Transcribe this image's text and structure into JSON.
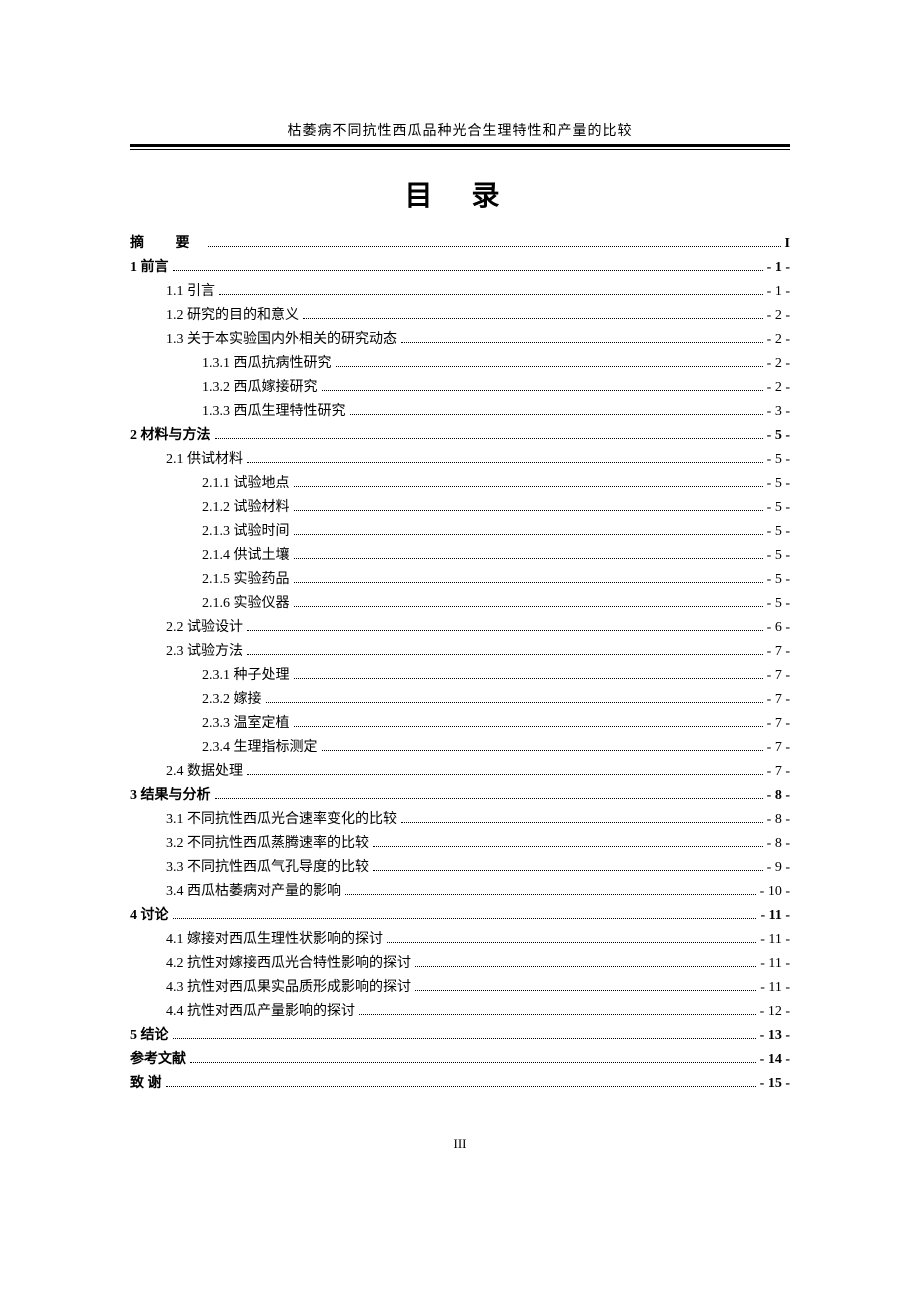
{
  "header": {
    "title": "枯萎病不同抗性西瓜品种光合生理特性和产量的比较"
  },
  "main_title": "目 录",
  "footer_page": "III",
  "toc": {
    "entries": [
      {
        "label": "摘    要",
        "page": "I",
        "level": 0,
        "special": "zhiyao"
      },
      {
        "label": "1 前言",
        "page": "- 1 -",
        "level": 0
      },
      {
        "label": "1.1  引言 ",
        "page": "- 1 -",
        "level": 1
      },
      {
        "label": "1.2  研究的目的和意义 ",
        "page": "- 2 -",
        "level": 1
      },
      {
        "label": "1.3  关于本实验国内外相关的研究动态 ",
        "page": "- 2 -",
        "level": 1
      },
      {
        "label": "1.3.1  西瓜抗病性研究",
        "page": "- 2 -",
        "level": 2
      },
      {
        "label": "1.3.2  西瓜嫁接研究",
        "page": "- 2 -",
        "level": 2
      },
      {
        "label": "1.3.3  西瓜生理特性研究 ",
        "page": "- 3 -",
        "level": 2
      },
      {
        "label": "2  材料与方法 ",
        "page": "- 5 -",
        "level": 0
      },
      {
        "label": "2.1   供试材料",
        "page": "- 5 -",
        "level": 1
      },
      {
        "label": "2.1.1 试验地点  ",
        "page": "- 5 -",
        "level": 2
      },
      {
        "label": "2.1.2 试验材料  ",
        "page": "- 5 -",
        "level": 2
      },
      {
        "label": "2.1.3 试验时间  ",
        "page": "- 5 -",
        "level": 2
      },
      {
        "label": "2.1.4 供试土壤  ",
        "page": "- 5 -",
        "level": 2
      },
      {
        "label": "2.1.5 实验药品  ",
        "page": "- 5 -",
        "level": 2
      },
      {
        "label": "2.1.6 实验仪器  ",
        "page": "- 5 -",
        "level": 2
      },
      {
        "label": "2.2   试验设计",
        "page": "- 6 -",
        "level": 1
      },
      {
        "label": "2.3  试验方法",
        "page": "- 7 -",
        "level": 1
      },
      {
        "label": "2.3.1 种子处理  ",
        "page": "- 7 -",
        "level": 2
      },
      {
        "label": "2.3.2 嫁接 ",
        "page": "- 7 -",
        "level": 2
      },
      {
        "label": "2.3.3 温室定植 ",
        "page": "- 7 -",
        "level": 2
      },
      {
        "label": "2.3.4 生理指标测定 ",
        "page": "- 7 -",
        "level": 2
      },
      {
        "label": "2.4  数据处理",
        "page": "- 7 -",
        "level": 1
      },
      {
        "label": "3  结果与分析 ",
        "page": "- 8 -",
        "level": 0
      },
      {
        "label": "3.1 不同抗性西瓜光合速率变化的比较 ",
        "page": "- 8 -",
        "level": 1
      },
      {
        "label": "3.2 不同抗性西瓜蒸腾速率的比较 ",
        "page": "- 8 -",
        "level": 1
      },
      {
        "label": "3.3 不同抗性西瓜气孔导度的比较 ",
        "page": "- 9 -",
        "level": 1
      },
      {
        "label": "3.4 西瓜枯萎病对产量的影响 ",
        "page": "- 10 -",
        "level": 1
      },
      {
        "label": "4  讨论",
        "page": "- 11 -",
        "level": 0
      },
      {
        "label": "4.1 嫁接对西瓜生理性状影响的探讨 ",
        "page": "- 11 -",
        "level": 1
      },
      {
        "label": "4.2 抗性对嫁接西瓜光合特性影响的探讨",
        "page": "- 11 -",
        "level": 1
      },
      {
        "label": "4.3 抗性对西瓜果实品质形成影响的探讨",
        "page": "- 11 -",
        "level": 1
      },
      {
        "label": "4.4 抗性对西瓜产量影响的探讨 ",
        "page": "- 12 -",
        "level": 1
      },
      {
        "label": "5  结论",
        "page": "- 13 -",
        "level": 0
      },
      {
        "label": "参考文献",
        "page": "- 14 -",
        "level": 0
      },
      {
        "label": "致 谢",
        "page": "- 15 -",
        "level": 0
      }
    ]
  }
}
